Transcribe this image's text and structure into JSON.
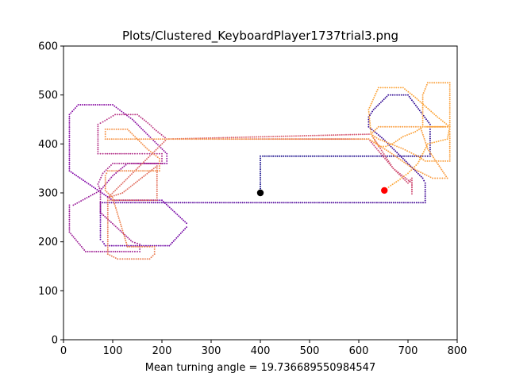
{
  "chart_data": {
    "type": "scatter",
    "title": "Plots/Clustered_KeyboardPlayer1737trial3.png",
    "xlabel": "Mean turning angle = 19.736689550984547",
    "ylabel": "",
    "xlim": [
      0,
      800
    ],
    "ylim": [
      0,
      600
    ],
    "xticks": [
      0,
      100,
      200,
      300,
      400,
      500,
      600,
      700,
      800
    ],
    "yticks": [
      0,
      100,
      200,
      300,
      400,
      500,
      600
    ],
    "grid": false,
    "legend": "none",
    "colormap": "plasma (dotted trajectory, color by time)",
    "start_point": {
      "x": 400,
      "y": 300,
      "color": "#000000"
    },
    "end_point": {
      "x": 652,
      "y": 305,
      "color": "#ff0000"
    },
    "trajectory": [
      [
        400,
        300
      ],
      [
        400,
        375
      ],
      [
        405,
        375
      ],
      [
        730,
        375
      ],
      [
        745,
        375
      ],
      [
        745,
        420
      ],
      [
        745,
        440
      ],
      [
        700,
        500
      ],
      [
        660,
        500
      ],
      [
        630,
        470
      ],
      [
        620,
        455
      ],
      [
        620,
        435
      ],
      [
        650,
        410
      ],
      [
        690,
        370
      ],
      [
        730,
        330
      ],
      [
        735,
        320
      ],
      [
        735,
        280
      ],
      [
        700,
        280
      ],
      [
        120,
        280
      ],
      [
        75,
        280
      ],
      [
        75,
        205
      ],
      [
        80,
        200
      ],
      [
        85,
        192
      ],
      [
        185,
        192
      ],
      [
        215,
        192
      ],
      [
        250,
        230
      ],
      [
        250,
        238
      ],
      [
        200,
        285
      ],
      [
        100,
        285
      ],
      [
        12,
        345
      ],
      [
        12,
        460
      ],
      [
        30,
        480
      ],
      [
        100,
        480
      ],
      [
        140,
        450
      ],
      [
        210,
        380
      ],
      [
        210,
        360
      ],
      [
        130,
        360
      ],
      [
        100,
        335
      ],
      [
        75,
        305
      ],
      [
        20,
        275
      ],
      [
        12,
        275
      ],
      [
        12,
        220
      ],
      [
        45,
        180
      ],
      [
        140,
        180
      ],
      [
        155,
        180
      ],
      [
        155,
        195
      ],
      [
        140,
        200
      ],
      [
        75,
        260
      ],
      [
        75,
        305
      ],
      [
        70,
        318
      ],
      [
        80,
        340
      ],
      [
        100,
        360
      ],
      [
        135,
        360
      ],
      [
        200,
        360
      ],
      [
        200,
        365
      ],
      [
        200,
        380
      ],
      [
        185,
        380
      ],
      [
        160,
        380
      ],
      [
        140,
        380
      ],
      [
        85,
        380
      ],
      [
        70,
        380
      ],
      [
        70,
        440
      ],
      [
        80,
        445
      ],
      [
        105,
        460
      ],
      [
        150,
        460
      ],
      [
        175,
        440
      ],
      [
        185,
        430
      ],
      [
        210,
        410
      ],
      [
        240,
        410
      ],
      [
        620,
        410
      ],
      [
        670,
        350
      ],
      [
        708,
        320
      ],
      [
        708,
        298
      ],
      [
        708,
        330
      ],
      [
        700,
        320
      ],
      [
        670,
        350
      ],
      [
        625,
        420
      ],
      [
        210,
        410
      ],
      [
        160,
        360
      ],
      [
        90,
        290
      ],
      [
        120,
        300
      ],
      [
        190,
        355
      ],
      [
        190,
        290
      ],
      [
        190,
        285
      ],
      [
        155,
        285
      ],
      [
        90,
        285
      ],
      [
        90,
        175
      ],
      [
        110,
        165
      ],
      [
        125,
        165
      ],
      [
        175,
        165
      ],
      [
        185,
        175
      ],
      [
        185,
        190
      ],
      [
        160,
        190
      ],
      [
        130,
        190
      ],
      [
        100,
        290
      ],
      [
        85,
        305
      ],
      [
        85,
        335
      ],
      [
        90,
        345
      ],
      [
        195,
        345
      ],
      [
        195,
        370
      ],
      [
        170,
        390
      ],
      [
        130,
        430
      ],
      [
        85,
        430
      ],
      [
        85,
        410
      ],
      [
        210,
        410
      ],
      [
        520,
        410
      ],
      [
        620,
        410
      ],
      [
        660,
        385
      ],
      [
        710,
        350
      ],
      [
        750,
        330
      ],
      [
        765,
        330
      ],
      [
        780,
        330
      ],
      [
        740,
        390
      ],
      [
        725,
        435
      ],
      [
        680,
        435
      ],
      [
        640,
        435
      ],
      [
        625,
        420
      ],
      [
        640,
        410
      ],
      [
        690,
        390
      ],
      [
        720,
        375
      ],
      [
        735,
        365
      ],
      [
        785,
        365
      ],
      [
        785,
        420
      ],
      [
        785,
        435
      ],
      [
        745,
        435
      ],
      [
        730,
        435
      ],
      [
        730,
        500
      ],
      [
        740,
        525
      ],
      [
        785,
        525
      ],
      [
        785,
        435
      ],
      [
        760,
        435
      ],
      [
        730,
        435
      ],
      [
        715,
        425
      ],
      [
        690,
        415
      ],
      [
        668,
        400
      ],
      [
        655,
        395
      ],
      [
        640,
        395
      ],
      [
        625,
        420
      ],
      [
        620,
        470
      ],
      [
        640,
        515
      ],
      [
        690,
        515
      ],
      [
        715,
        495
      ],
      [
        760,
        455
      ],
      [
        785,
        435
      ],
      [
        780,
        410
      ],
      [
        740,
        400
      ],
      [
        730,
        380
      ],
      [
        720,
        360
      ],
      [
        700,
        340
      ],
      [
        680,
        325
      ],
      [
        665,
        315
      ],
      [
        652,
        305
      ]
    ]
  }
}
